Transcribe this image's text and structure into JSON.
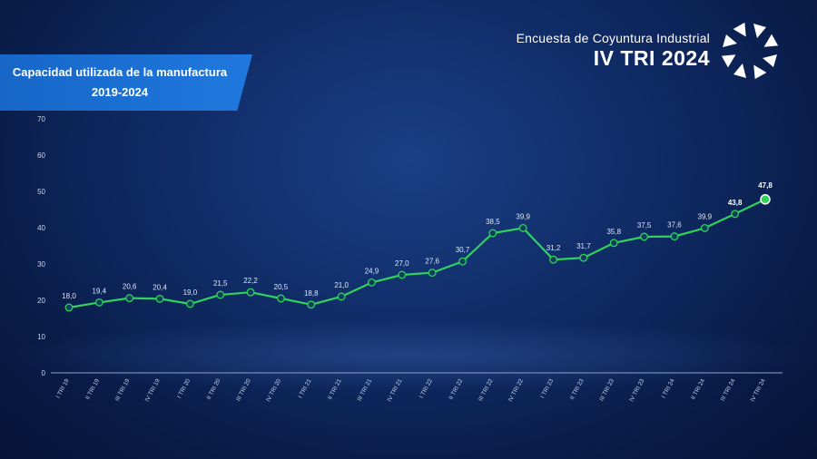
{
  "header": {
    "subtitle": "Encuesta de Coyuntura Industrial",
    "title": "IV TRI 2024"
  },
  "ribbon": {
    "line1": "Capacidad utilizada de la manufactura",
    "line2": "2019-2024"
  },
  "colors": {
    "line": "#2fd35c",
    "marker_fill": "#0d3f5a",
    "ribbon": "#1a6fd4"
  },
  "chart_data": {
    "type": "line",
    "title": "Capacidad utilizada de la manufactura 2019-2024",
    "xlabel": "",
    "ylabel": "",
    "ylim": [
      0,
      70
    ],
    "yticks": [
      0,
      10,
      20,
      30,
      40,
      50,
      60,
      70
    ],
    "grid": false,
    "categories": [
      "I TRI 19",
      "II TRI 19",
      "III TRI 19",
      "IV TRI 19",
      "I TRI 20",
      "II TRI 20",
      "III TRI 20",
      "IV TRI 20",
      "I TRI 21",
      "II TRI 21",
      "III TRI 21",
      "IV TRI 21",
      "I TRI 22",
      "II TRI 22",
      "III TRI 22",
      "IV TRI 22",
      "I TRI 23",
      "II TRI 23",
      "III TRI 23",
      "IV TRI 23",
      "I TRI 24",
      "II TRI 24",
      "III TRI 24",
      "IV TRI 24"
    ],
    "values": [
      18.0,
      19.4,
      20.6,
      20.4,
      19.0,
      21.5,
      22.2,
      20.5,
      18.8,
      21.0,
      24.9,
      27.0,
      27.6,
      30.7,
      38.5,
      39.9,
      31.2,
      31.7,
      35.8,
      37.5,
      37.6,
      39.9,
      43.8,
      47.8
    ],
    "labels": [
      "18,0",
      "19,4",
      "20,6",
      "20,4",
      "19,0",
      "21,5",
      "22,2",
      "20,5",
      "18,8",
      "21,0",
      "24,9",
      "27,0",
      "27,6",
      "30,7",
      "38,5",
      "39,9",
      "31,2",
      "31,7",
      "35,8",
      "37,5",
      "37,6",
      "39,9",
      "43,8",
      "47,8"
    ]
  }
}
